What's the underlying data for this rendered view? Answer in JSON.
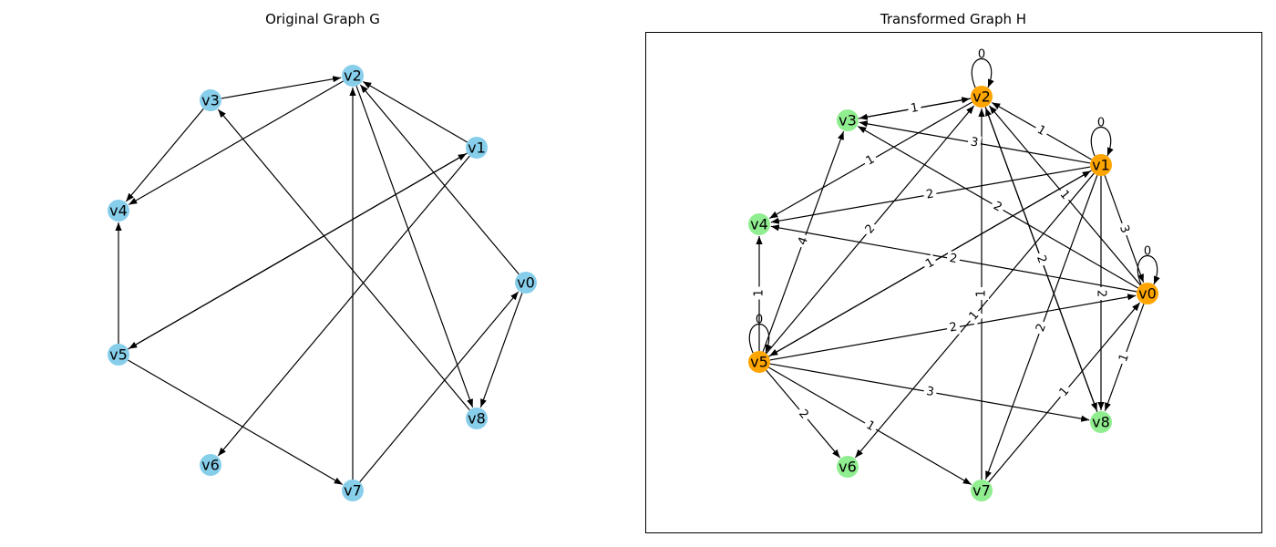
{
  "colors": {
    "node_original": "#87ceeb",
    "node_selected": "#ffa500",
    "node_other": "#90ee90",
    "edge": "#000000",
    "frame": "#000000"
  },
  "graphs": [
    {
      "id": "G",
      "title": "Original Graph G",
      "framed": false,
      "nodes": [
        {
          "id": "v0",
          "label": "v0",
          "group": "original"
        },
        {
          "id": "v1",
          "label": "v1",
          "group": "original"
        },
        {
          "id": "v2",
          "label": "v2",
          "group": "original"
        },
        {
          "id": "v3",
          "label": "v3",
          "group": "original"
        },
        {
          "id": "v4",
          "label": "v4",
          "group": "original"
        },
        {
          "id": "v5",
          "label": "v5",
          "group": "original"
        },
        {
          "id": "v6",
          "label": "v6",
          "group": "original"
        },
        {
          "id": "v7",
          "label": "v7",
          "group": "original"
        },
        {
          "id": "v8",
          "label": "v8",
          "group": "original"
        }
      ],
      "edges": [
        {
          "from": "v3",
          "to": "v2"
        },
        {
          "from": "v3",
          "to": "v4"
        },
        {
          "from": "v2",
          "to": "v4"
        },
        {
          "from": "v1",
          "to": "v2"
        },
        {
          "from": "v0",
          "to": "v2"
        },
        {
          "from": "v1",
          "to": "v5"
        },
        {
          "from": "v5",
          "to": "v1"
        },
        {
          "from": "v1",
          "to": "v6"
        },
        {
          "from": "v5",
          "to": "v4"
        },
        {
          "from": "v5",
          "to": "v7"
        },
        {
          "from": "v7",
          "to": "v2"
        },
        {
          "from": "v7",
          "to": "v0"
        },
        {
          "from": "v0",
          "to": "v8"
        },
        {
          "from": "v8",
          "to": "v3"
        },
        {
          "from": "v2",
          "to": "v8"
        }
      ]
    },
    {
      "id": "H",
      "title": "Transformed Graph H",
      "framed": true,
      "nodes": [
        {
          "id": "v0",
          "label": "v0",
          "group": "selected"
        },
        {
          "id": "v1",
          "label": "v1",
          "group": "selected"
        },
        {
          "id": "v2",
          "label": "v2",
          "group": "selected"
        },
        {
          "id": "v3",
          "label": "v3",
          "group": "other"
        },
        {
          "id": "v4",
          "label": "v4",
          "group": "other"
        },
        {
          "id": "v5",
          "label": "v5",
          "group": "selected"
        },
        {
          "id": "v6",
          "label": "v6",
          "group": "other"
        },
        {
          "id": "v7",
          "label": "v7",
          "group": "other"
        },
        {
          "id": "v8",
          "label": "v8",
          "group": "other"
        }
      ],
      "edges": [
        {
          "from": "v2",
          "to": "v2",
          "label": "0"
        },
        {
          "from": "v1",
          "to": "v1",
          "label": "0"
        },
        {
          "from": "v0",
          "to": "v0",
          "label": "0"
        },
        {
          "from": "v5",
          "to": "v5",
          "label": "0"
        },
        {
          "from": "v2",
          "to": "v3",
          "label": "1"
        },
        {
          "from": "v3",
          "to": "v2",
          "label": "1"
        },
        {
          "from": "v1",
          "to": "v2",
          "label": "1"
        },
        {
          "from": "v1",
          "to": "v3",
          "label": "3"
        },
        {
          "from": "v0",
          "to": "v2",
          "label": "1"
        },
        {
          "from": "v0",
          "to": "v3",
          "label": "2"
        },
        {
          "from": "v2",
          "to": "v4",
          "label": "1"
        },
        {
          "from": "v1",
          "to": "v4",
          "label": "2"
        },
        {
          "from": "v0",
          "to": "v4",
          "label": "2"
        },
        {
          "from": "v1",
          "to": "v0",
          "label": "3"
        },
        {
          "from": "v5",
          "to": "v2",
          "label": "2"
        },
        {
          "from": "v5",
          "to": "v3",
          "label": "4"
        },
        {
          "from": "v5",
          "to": "v4",
          "label": "1"
        },
        {
          "from": "v5",
          "to": "v1",
          "label": "1"
        },
        {
          "from": "v1",
          "to": "v5",
          "label": "1"
        },
        {
          "from": "v5",
          "to": "v0",
          "label": "2"
        },
        {
          "from": "v7",
          "to": "v2",
          "label": "1"
        },
        {
          "from": "v1",
          "to": "v6",
          "label": "1"
        },
        {
          "from": "v1",
          "to": "v7",
          "label": "2"
        },
        {
          "from": "v1",
          "to": "v8",
          "label": "2"
        },
        {
          "from": "v2",
          "to": "v8",
          "label": "2"
        },
        {
          "from": "v8",
          "to": "v2",
          "label": "2"
        },
        {
          "from": "v0",
          "to": "v8",
          "label": "1"
        },
        {
          "from": "v7",
          "to": "v0",
          "label": "1"
        },
        {
          "from": "v5",
          "to": "v6",
          "label": "2"
        },
        {
          "from": "v5",
          "to": "v7",
          "label": "1"
        },
        {
          "from": "v5",
          "to": "v8",
          "label": "3"
        }
      ]
    }
  ]
}
